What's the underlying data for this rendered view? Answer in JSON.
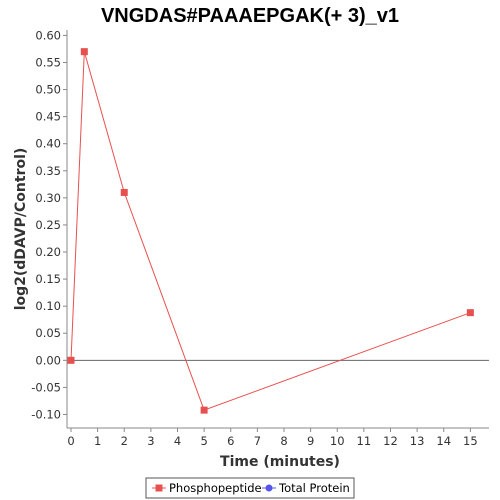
{
  "chart_data": {
    "type": "line",
    "title": "VNGDAS#PAAAEPGAK(+ 3)_v1",
    "xlabel": "Time (minutes)",
    "ylabel": "log2(dDAVP/Control)",
    "xlim": [
      0,
      15.7
    ],
    "ylim": [
      -0.125,
      0.61
    ],
    "x_ticks": [
      0,
      1,
      2,
      3,
      4,
      5,
      6,
      7,
      8,
      9,
      10,
      11,
      12,
      13,
      14,
      15
    ],
    "y_ticks": [
      -0.1,
      -0.05,
      0.0,
      0.05,
      0.1,
      0.15,
      0.2,
      0.25,
      0.3,
      0.35,
      0.4,
      0.45,
      0.5,
      0.55,
      0.6
    ],
    "zero_line": true,
    "grid": false,
    "legend_position": "bottom-center",
    "series": [
      {
        "name": "Phosphopeptide",
        "color": "#e8504f",
        "marker": "square",
        "x": [
          0,
          0.5,
          2,
          5,
          15
        ],
        "y": [
          0.0,
          0.57,
          0.31,
          -0.092,
          0.088
        ]
      },
      {
        "name": "Total Protein",
        "color": "#5555ee",
        "marker": "circle",
        "x": [],
        "y": []
      }
    ]
  }
}
